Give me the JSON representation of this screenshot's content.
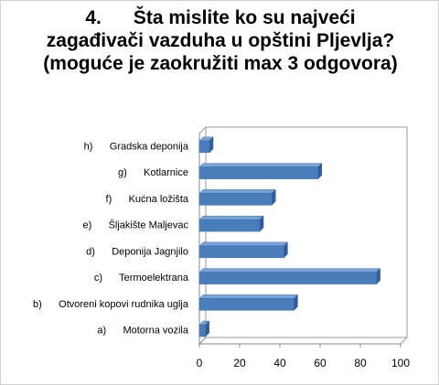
{
  "chart_data": {
    "type": "bar",
    "orientation": "horizontal",
    "title": "4.      Šta mislite ko su najveći zagađivači vazduha u opštini Pljevlja? (moguće je zaokružiti max 3 odgovora)",
    "categories": [
      "a)      Motorna vozila",
      "b)      Otvoreni kopovi rudnika uglja",
      "c)      Termoelektrana",
      "d)      Deponija Jagnjilo",
      "e)      Šljakište Maljevac",
      "f)      Kućna ložišta",
      "g)      Kotlarnice",
      "h)      Gradska deponija"
    ],
    "values": [
      3,
      47,
      88,
      42,
      30,
      36,
      59,
      5
    ],
    "color": "#4a7ebb",
    "xlim": [
      0,
      100
    ],
    "xticks": [
      0,
      20,
      40,
      60,
      80,
      100
    ]
  }
}
